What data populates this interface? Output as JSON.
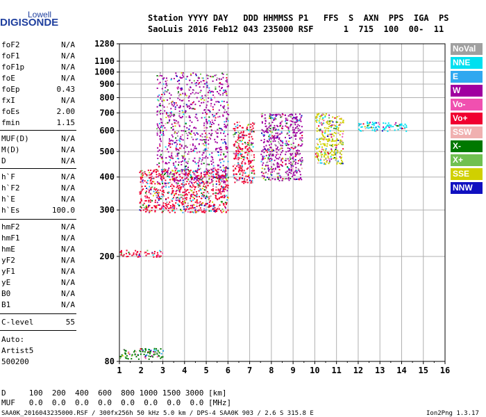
{
  "logo": {
    "line1": "Lowell",
    "line2": "DIGISONDE"
  },
  "header": {
    "row1": "Station YYYY DAY   DDD HHMMSS P1   FFS  S  AXN  PPS  IGA  PS",
    "row2": "SaoLuis 2016 Feb12 043 235000 RSF      1  715  100  00-  11"
  },
  "params_group1": [
    {
      "name": "foF2",
      "value": "N/A"
    },
    {
      "name": "foF1",
      "value": "N/A"
    },
    {
      "name": "foF1p",
      "value": "N/A"
    },
    {
      "name": "foE",
      "value": "N/A"
    },
    {
      "name": "foEp",
      "value": "0.43"
    },
    {
      "name": "fxI",
      "value": "N/A"
    },
    {
      "name": "foEs",
      "value": "2.00"
    },
    {
      "name": "fmin",
      "value": "1.15"
    }
  ],
  "params_group2": [
    {
      "name": "MUF(D)",
      "value": "N/A"
    },
    {
      "name": "M(D)",
      "value": "N/A"
    },
    {
      "name": "D",
      "value": "N/A"
    }
  ],
  "params_group3": [
    {
      "name": "h`F",
      "value": "N/A"
    },
    {
      "name": "h`F2",
      "value": "N/A"
    },
    {
      "name": "h`E",
      "value": "N/A"
    },
    {
      "name": "h`Es",
      "value": "100.0"
    }
  ],
  "params_group4": [
    {
      "name": "hmF2",
      "value": "N/A"
    },
    {
      "name": "hmF1",
      "value": "N/A"
    },
    {
      "name": "hmE",
      "value": "N/A"
    },
    {
      "name": "yF2",
      "value": "N/A"
    },
    {
      "name": "yF1",
      "value": "N/A"
    },
    {
      "name": "yE",
      "value": "N/A"
    },
    {
      "name": "B0",
      "value": "N/A"
    },
    {
      "name": "B1",
      "value": "N/A"
    }
  ],
  "clevel": {
    "name": "C-level",
    "value": "55"
  },
  "auto": {
    "line1": "Auto:",
    "line2": "Artist5",
    "line3": "500200"
  },
  "legend": [
    {
      "label": "NoVal",
      "color": "#a0a0a0"
    },
    {
      "label": "NNE",
      "color": "#00e0f0"
    },
    {
      "label": "E",
      "color": "#30a8f0"
    },
    {
      "label": "W",
      "color": "#a000a0"
    },
    {
      "label": "Vo-",
      "color": "#f050b0"
    },
    {
      "label": "Vo+",
      "color": "#f00030"
    },
    {
      "label": "SSW",
      "color": "#f0b0b0"
    },
    {
      "label": "X-",
      "color": "#007800"
    },
    {
      "label": "X+",
      "color": "#70c050"
    },
    {
      "label": "SSE",
      "color": "#d0d000"
    },
    {
      "label": "NNW",
      "color": "#1010c0"
    }
  ],
  "footer": {
    "d_row": "D     100  200  400  600  800 1000 1500 3000 [km]",
    "muf_row": "MUF   0.0  0.0  0.0  0.0  0.0  0.0  0.0  0.0 [MHz]",
    "info": "SAA0K_2016043235000.RSF / 300fx256h 50 kHz 5.0 km / DPS-4 SAA0K 903 / 2.6 S 315.8 E",
    "version": "Ion2Png 1.3.17"
  },
  "chart_data": {
    "type": "scatter",
    "title": "",
    "xlabel": "",
    "ylabel": "",
    "x_unit": "MHz",
    "y_unit": "km",
    "xlim": [
      1,
      16
    ],
    "ylim": [
      80,
      1280
    ],
    "y_scale": "log",
    "grid": true,
    "x_ticks": [
      1,
      2,
      3,
      4,
      5,
      6,
      7,
      8,
      9,
      10,
      11,
      12,
      13,
      14,
      15,
      16
    ],
    "y_ticks": [
      80,
      200,
      300,
      400,
      500,
      600,
      700,
      800,
      900,
      1000,
      1100,
      1280
    ],
    "clusters": [
      {
        "name": "E-sporadic trace",
        "x_range": [
          1.0,
          3.0
        ],
        "y_range": [
          82,
          90
        ],
        "color": "#007800"
      },
      {
        "name": "second hop Es",
        "x_range": [
          1.0,
          3.0
        ],
        "y_range": [
          200,
          212
        ],
        "color": "#f00030"
      },
      {
        "name": "F-layer base trace",
        "x_range": [
          1.9,
          6.0
        ],
        "y_range": [
          295,
          430
        ],
        "color": "#f00030"
      },
      {
        "name": "spread F",
        "x_range": [
          2.7,
          6.0
        ],
        "y_range": [
          380,
          1000
        ],
        "color": "#a000a0"
      },
      {
        "name": "spread F band 6-7",
        "x_range": [
          6.2,
          7.2
        ],
        "y_range": [
          380,
          650
        ],
        "color": "#f00030"
      },
      {
        "name": "spread F band 7.5-8.5",
        "x_range": [
          7.5,
          8.5
        ],
        "y_range": [
          390,
          700
        ],
        "color": "#a000a0"
      },
      {
        "name": "spread F band 8.6-9.4",
        "x_range": [
          8.6,
          9.4
        ],
        "y_range": [
          390,
          700
        ],
        "color": "#a000a0"
      },
      {
        "name": "spread F band 10-11.3",
        "x_range": [
          10.0,
          11.3
        ],
        "y_range": [
          450,
          700
        ],
        "color": "#d0d000"
      },
      {
        "name": "oblique echoes",
        "x_range": [
          12.0,
          14.2
        ],
        "y_range": [
          600,
          650
        ],
        "color": "#00e0f0"
      }
    ]
  }
}
